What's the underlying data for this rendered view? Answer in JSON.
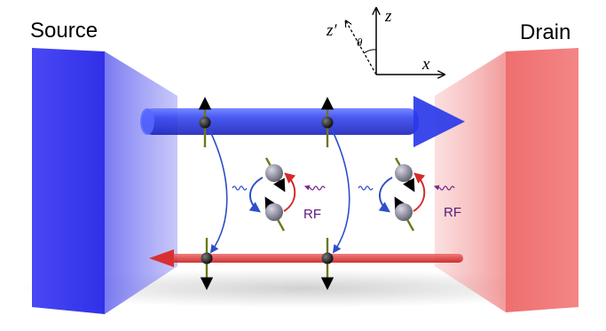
{
  "labels": {
    "source": "Source",
    "drain": "Drain",
    "rf_left": "RF",
    "rf_right": "RF"
  },
  "axes": {
    "z": "z",
    "z_prime": "z′",
    "x": "x",
    "theta": "θ"
  },
  "colors": {
    "source_block": "#3a3af0",
    "drain_block": "#f06a6a",
    "top_channel": "#2f3fe6",
    "bottom_channel": "#e23a3a",
    "spin_arrow": "#6b7a18",
    "transition_arrow_blue": "#2f4fc9",
    "transition_arrow_red": "#d42a2a",
    "rf_wave": "#7a2a8a",
    "rf_text": "#5a1a7a"
  }
}
